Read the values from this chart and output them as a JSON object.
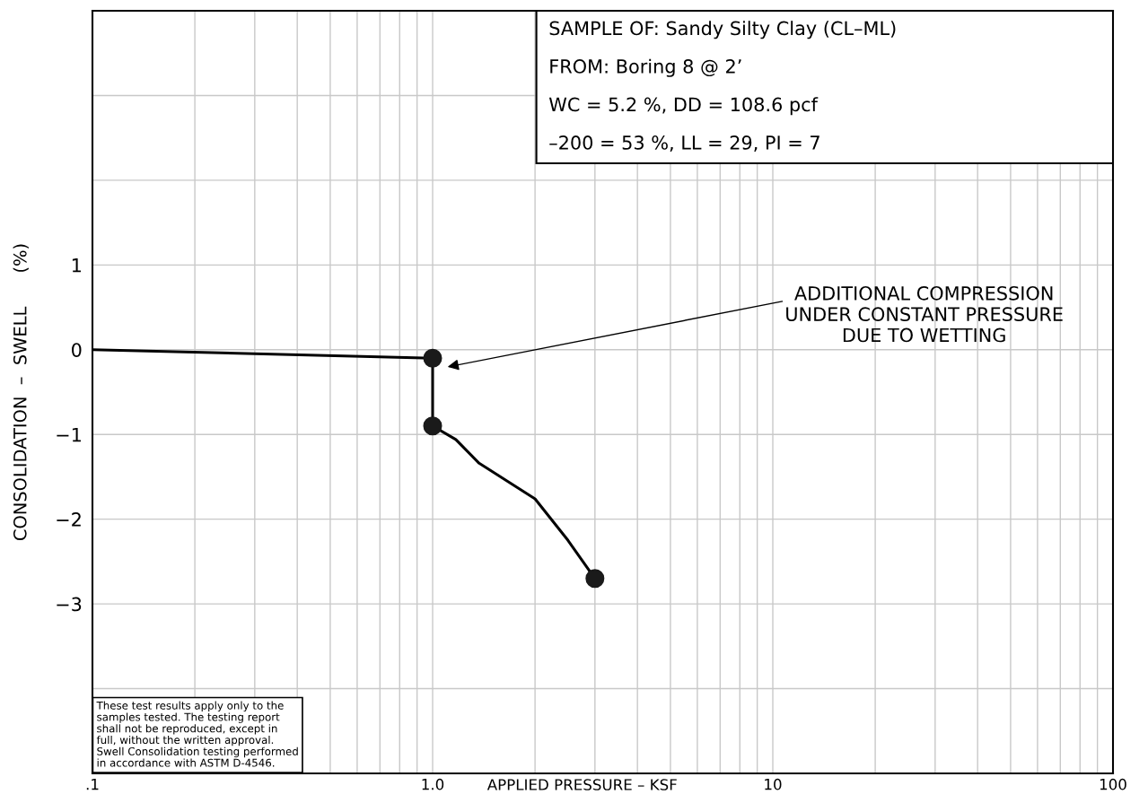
{
  "chart_data": {
    "type": "line",
    "xlabel": "APPLIED PRESSURE – KSF",
    "ylabel": "CONSOLIDATION  –  SWELL      (%)",
    "log": "x",
    "grid": true,
    "series": [
      {
        "color": "#000000",
        "marker": "none",
        "x": [
          0.1,
          1.0,
          1.0,
          1.17,
          1.37,
          2.0,
          2.5,
          3.0
        ],
        "values": [
          0.0,
          -0.1,
          -0.9,
          -1.06,
          -1.34,
          -1.76,
          -2.25,
          -2.7
        ]
      },
      {
        "type": "scatter",
        "color": "#1a1a1a",
        "marker": "circle",
        "x": [
          1.0,
          1.0,
          3.0
        ],
        "values": [
          -0.1,
          -0.9,
          -2.7
        ]
      }
    ],
    "xlim": [
      0.1,
      100
    ],
    "xticks": [
      {
        "value": 0.1,
        "label": ".1"
      },
      {
        "value": 0.2,
        "label": null
      },
      {
        "value": 0.3,
        "label": null
      },
      {
        "value": 0.4,
        "label": null
      },
      {
        "value": 0.5,
        "label": null
      },
      {
        "value": 0.6,
        "label": null
      },
      {
        "value": 0.7,
        "label": null
      },
      {
        "value": 0.8,
        "label": null
      },
      {
        "value": 0.9,
        "label": null
      },
      {
        "value": 1,
        "label": "1.0"
      },
      {
        "value": 2,
        "label": null
      },
      {
        "value": 3,
        "label": null
      },
      {
        "value": 4,
        "label": null
      },
      {
        "value": 5,
        "label": null
      },
      {
        "value": 6,
        "label": null
      },
      {
        "value": 7,
        "label": null
      },
      {
        "value": 8,
        "label": null
      },
      {
        "value": 9,
        "label": null
      },
      {
        "value": 10,
        "label": "10"
      },
      {
        "value": 20,
        "label": null
      },
      {
        "value": 30,
        "label": null
      },
      {
        "value": 40,
        "label": null
      },
      {
        "value": 50,
        "label": null
      },
      {
        "value": 60,
        "label": null
      },
      {
        "value": 70,
        "label": null
      },
      {
        "value": 80,
        "label": null
      },
      {
        "value": 90,
        "label": null
      },
      {
        "value": 100,
        "label": "100"
      }
    ],
    "ylim": [
      -5,
      4
    ],
    "yticks": [
      {
        "value": -4,
        "label": null
      },
      {
        "value": -3,
        "label": "−3"
      },
      {
        "value": -2,
        "label": "−2"
      },
      {
        "value": -1,
        "label": "−1"
      },
      0,
      1,
      {
        "value": 2,
        "label": null
      },
      {
        "value": 3,
        "label": null
      }
    ],
    "annotations": [
      "SAMPLE OF: Sandy Silty Clay (CL–ML)",
      "FROM: Boring 8 @ 2’",
      "WC = 5.2 %, DD = 108.6 pcf",
      "–200 = 53 %, LL = 29, PI = 7",
      "ADDITIONAL COMPRESSION\nUNDER CONSTANT PRESSURE\nDUE TO WETTING",
      "These test results apply only to the\nsamples tested. The testing report\nshall not be reproduced, except in\nfull, without the written approval.\nSwell Consolidation testing performed\nin accordance with ASTM D-4546."
    ]
  }
}
